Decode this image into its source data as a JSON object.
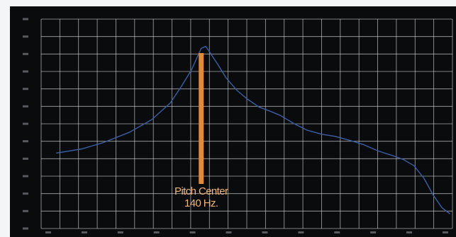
{
  "chart_data": {
    "type": "line",
    "title": "",
    "xlabel": "",
    "ylabel": "",
    "xscale": "log",
    "xlim": [
      40,
      1000
    ],
    "ylim": [
      0,
      1
    ],
    "grid": true,
    "series": [
      {
        "color": "#3c5fa6",
        "x": [
          45,
          55,
          65,
          80,
          95,
          110,
          120,
          130,
          140,
          145,
          150,
          160,
          170,
          185,
          200,
          220,
          240,
          260,
          290,
          320,
          360,
          400,
          450,
          500,
          560,
          620,
          680,
          740,
          800,
          860,
          920,
          980
        ],
        "y": [
          0.36,
          0.38,
          0.41,
          0.46,
          0.52,
          0.6,
          0.68,
          0.76,
          0.86,
          0.87,
          0.84,
          0.78,
          0.72,
          0.66,
          0.62,
          0.58,
          0.56,
          0.54,
          0.5,
          0.47,
          0.45,
          0.44,
          0.42,
          0.4,
          0.37,
          0.35,
          0.33,
          0.3,
          0.24,
          0.16,
          0.1,
          0.07
        ]
      }
    ],
    "annotations": [
      {
        "label_line1": "Pitch Center",
        "label_line2": "140 Hz.",
        "x": 140
      }
    ]
  },
  "colors": {
    "background": "#0a0b0d",
    "grid": "#d7dadd",
    "spectrum": "#3c5fa6",
    "marker": "#e08a3a",
    "marker_text": "#f1b47a"
  }
}
